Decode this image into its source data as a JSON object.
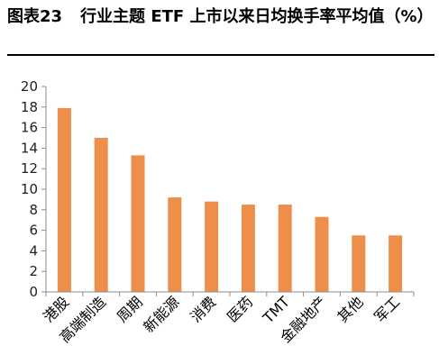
{
  "figure": {
    "label": "图表23",
    "title": "行业主题 ETF 上市以来日均换手率平均值（%）"
  },
  "chart_data": {
    "type": "bar",
    "title": "行业主题 ETF 上市以来日均换手率平均值（%）",
    "xlabel": "",
    "ylabel": "",
    "categories": [
      "港股",
      "高端制造",
      "周期",
      "新能源",
      "消费",
      "医药",
      "TMT",
      "金融地产",
      "其他",
      "军工"
    ],
    "values": [
      17.9,
      15.0,
      13.3,
      9.2,
      8.8,
      8.5,
      8.5,
      7.3,
      5.5,
      5.5
    ],
    "ylim": [
      0,
      20
    ],
    "yticks": [
      0,
      2,
      4,
      6,
      8,
      10,
      12,
      14,
      16,
      18,
      20
    ],
    "bar_color": "#ED8F4B",
    "grid": false,
    "legend": "none"
  }
}
